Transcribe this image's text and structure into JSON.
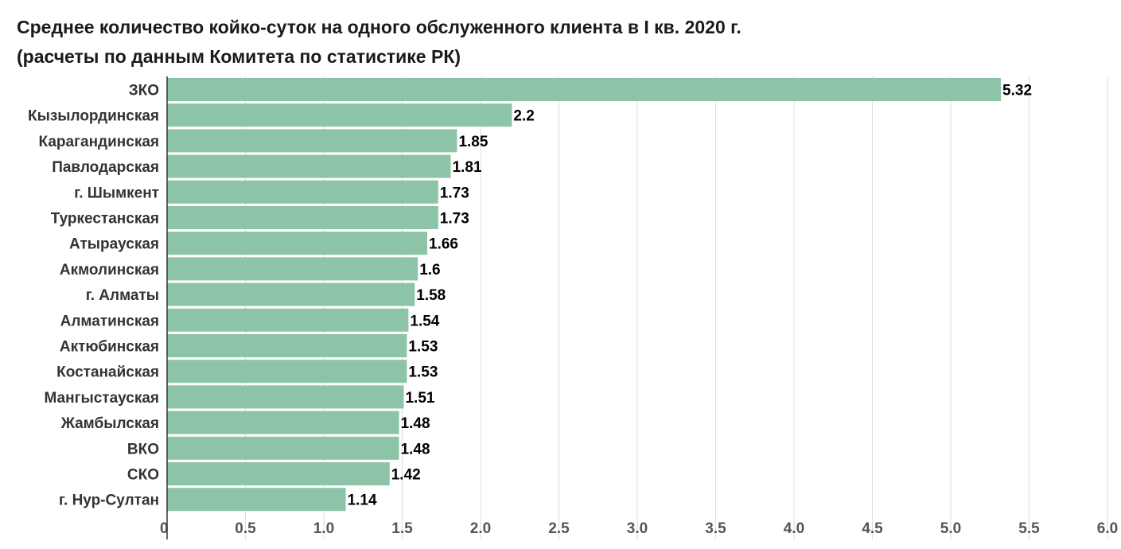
{
  "chart_data": {
    "type": "bar",
    "orientation": "horizontal",
    "title_line1": "Среднее количество койко-суток на одного обслуженного клиента в I кв. 2020 г.",
    "title_line2": "(расчеты по данным Комитета по статистике РК)",
    "categories": [
      "ЗКО",
      "Кызылординская",
      "Карагандинская",
      "Павлодарская",
      "г. Шымкент",
      "Туркестанская",
      "Атырауская",
      "Акмолинская",
      "г. Алматы",
      "Алматинская",
      "Актюбинская",
      "Костанайская",
      "Мангыстауская",
      "Жамбылская",
      "ВКО",
      "СКО",
      "г. Нур-Султан"
    ],
    "values": [
      5.32,
      2.2,
      1.85,
      1.81,
      1.73,
      1.73,
      1.66,
      1.6,
      1.58,
      1.54,
      1.53,
      1.53,
      1.51,
      1.48,
      1.48,
      1.42,
      1.14
    ],
    "value_labels": [
      "5.32",
      "2.2",
      "1.85",
      "1.81",
      "1.73",
      "1.73",
      "1.66",
      "1.6",
      "1.58",
      "1.54",
      "1.53",
      "1.53",
      "1.51",
      "1.48",
      "1.48",
      "1.42",
      "1.14"
    ],
    "xticks": [
      "0",
      "0.5",
      "1.0",
      "1.5",
      "2.0",
      "2.5",
      "3.0",
      "3.5",
      "4.0",
      "4.5",
      "5.0",
      "5.5",
      "6.0"
    ],
    "xlim": [
      0,
      6
    ],
    "grid": true,
    "bar_color": "#8dc3a6",
    "grid_color": "#dddddd",
    "tick_label_color": "#555555",
    "category_label_color": "#333333",
    "value_label_color": "#000000"
  }
}
